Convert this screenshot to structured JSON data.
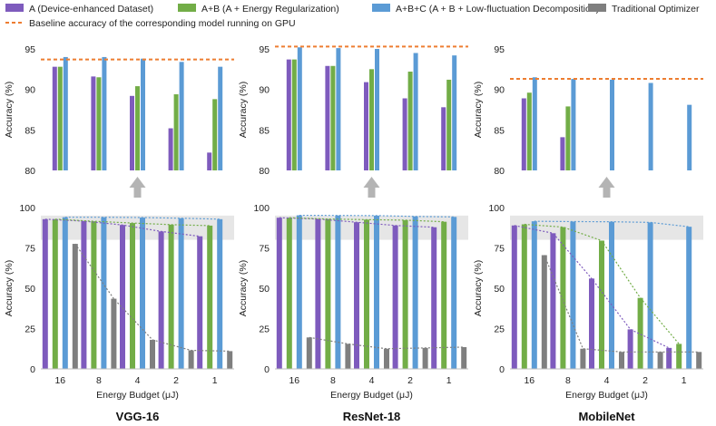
{
  "legend": {
    "items": [
      {
        "label": "A (Device-enhanced Dataset)",
        "color": "#7e5bbd"
      },
      {
        "label": "A+B (A + Energy Regularization)",
        "color": "#72ad47"
      },
      {
        "label": "A+B+C (A + B + Low-fluctuation Decomposition)",
        "color": "#5b9bd5"
      },
      {
        "label": "Traditional Optimizer",
        "color": "#7f7f7f"
      }
    ],
    "baseline_label": "Baseline accuracy of the corresponding model running on GPU",
    "baseline_color": "#ed7d31"
  },
  "chart_data": [
    {
      "type": "bar",
      "model": "VGG-16",
      "categories": [
        "16",
        "8",
        "4",
        "2",
        "1"
      ],
      "xlabel": "Energy Budget (μJ)",
      "ylabel": "Accuracy (%)",
      "top": {
        "ylim": [
          80,
          95
        ],
        "yticks": [
          80,
          85,
          90,
          95
        ],
        "baseline": 93.7,
        "series": [
          {
            "name": "A (Device-enhanced Dataset)",
            "values": [
              92.8,
              91.6,
              89.2,
              85.2,
              82.2
            ]
          },
          {
            "name": "A+B (A + Energy Regularization)",
            "values": [
              92.8,
              91.5,
              90.4,
              89.4,
              88.8
            ]
          },
          {
            "name": "A+B+C (A + B + Low-fluctuation Decomposition)",
            "values": [
              94.0,
              94.0,
              93.8,
              93.4,
              92.8
            ]
          }
        ]
      },
      "bottom": {
        "ylim": [
          0,
          100
        ],
        "yticks": [
          0,
          25,
          50,
          75,
          100
        ],
        "band": [
          80,
          95
        ],
        "series": [
          {
            "name": "A (Device-enhanced Dataset)",
            "values": [
              92.8,
              91.6,
              89.2,
              85.2,
              82.2
            ]
          },
          {
            "name": "A+B (A + Energy Regularization)",
            "values": [
              92.8,
              91.5,
              90.4,
              89.4,
              88.8
            ]
          },
          {
            "name": "A+B+C (A + B + Low-fluctuation Decomposition)",
            "values": [
              94.0,
              94.0,
              93.8,
              93.4,
              92.8
            ]
          },
          {
            "name": "Traditional Optimizer",
            "values": [
              77.5,
              43.5,
              18.0,
              11.5,
              11.0
            ]
          }
        ]
      }
    },
    {
      "type": "bar",
      "model": "ResNet-18",
      "categories": [
        "16",
        "8",
        "4",
        "2",
        "1"
      ],
      "xlabel": "Energy Budget (μJ)",
      "ylabel": "Accuracy (%)",
      "top": {
        "ylim": [
          80,
          95
        ],
        "yticks": [
          80,
          85,
          90,
          95
        ],
        "baseline": 95.3,
        "series": [
          {
            "name": "A (Device-enhanced Dataset)",
            "values": [
              93.7,
              92.9,
              90.9,
              88.9,
              87.8
            ]
          },
          {
            "name": "A+B (A + Energy Regularization)",
            "values": [
              93.7,
              92.9,
              92.5,
              92.2,
              91.2
            ]
          },
          {
            "name": "A+B+C (A + B + Low-fluctuation Decomposition)",
            "values": [
              95.2,
              95.1,
              95.0,
              94.5,
              94.2
            ]
          }
        ]
      },
      "bottom": {
        "ylim": [
          0,
          100
        ],
        "yticks": [
          0,
          25,
          50,
          75,
          100
        ],
        "band": [
          80,
          95
        ],
        "series": [
          {
            "name": "A (Device-enhanced Dataset)",
            "values": [
              93.7,
              92.9,
              90.9,
              88.9,
              87.8
            ]
          },
          {
            "name": "A+B (A + Energy Regularization)",
            "values": [
              93.7,
              92.9,
              92.5,
              92.2,
              91.2
            ]
          },
          {
            "name": "A+B+C (A + B + Low-fluctuation Decomposition)",
            "values": [
              95.2,
              95.1,
              95.0,
              94.5,
              94.2
            ]
          },
          {
            "name": "Traditional Optimizer",
            "values": [
              19.5,
              15.5,
              12.5,
              13.0,
              13.5
            ]
          }
        ]
      }
    },
    {
      "type": "bar",
      "model": "MobileNet",
      "categories": [
        "16",
        "8",
        "4",
        "2",
        "1"
      ],
      "xlabel": "Energy Budget (μJ)",
      "ylabel": "Accuracy (%)",
      "top": {
        "ylim": [
          80,
          95
        ],
        "yticks": [
          80,
          85,
          90,
          95
        ],
        "baseline": 91.3,
        "series": [
          {
            "name": "A (Device-enhanced Dataset)",
            "values": [
              88.9,
              84.1,
              null,
              null,
              null
            ]
          },
          {
            "name": "A+B (A + Energy Regularization)",
            "values": [
              89.6,
              87.9,
              null,
              null,
              null
            ]
          },
          {
            "name": "A+B+C (A + B + Low-fluctuation Decomposition)",
            "values": [
              91.5,
              91.3,
              91.2,
              90.8,
              88.1
            ]
          }
        ]
      },
      "bottom": {
        "ylim": [
          0,
          100
        ],
        "yticks": [
          0,
          25,
          50,
          75,
          100
        ],
        "band": [
          80,
          95
        ],
        "series": [
          {
            "name": "A (Device-enhanced Dataset)",
            "values": [
              88.9,
              84.1,
              56.0,
              24.5,
              13.0
            ]
          },
          {
            "name": "A+B (A + Energy Regularization)",
            "values": [
              89.6,
              87.9,
              79.5,
              44.0,
              15.5
            ]
          },
          {
            "name": "A+B+C (A + B + Low-fluctuation Decomposition)",
            "values": [
              91.5,
              91.3,
              91.2,
              90.8,
              88.1
            ]
          },
          {
            "name": "Traditional Optimizer",
            "values": [
              70.5,
              12.5,
              10.5,
              10.5,
              10.5
            ]
          }
        ]
      }
    }
  ]
}
